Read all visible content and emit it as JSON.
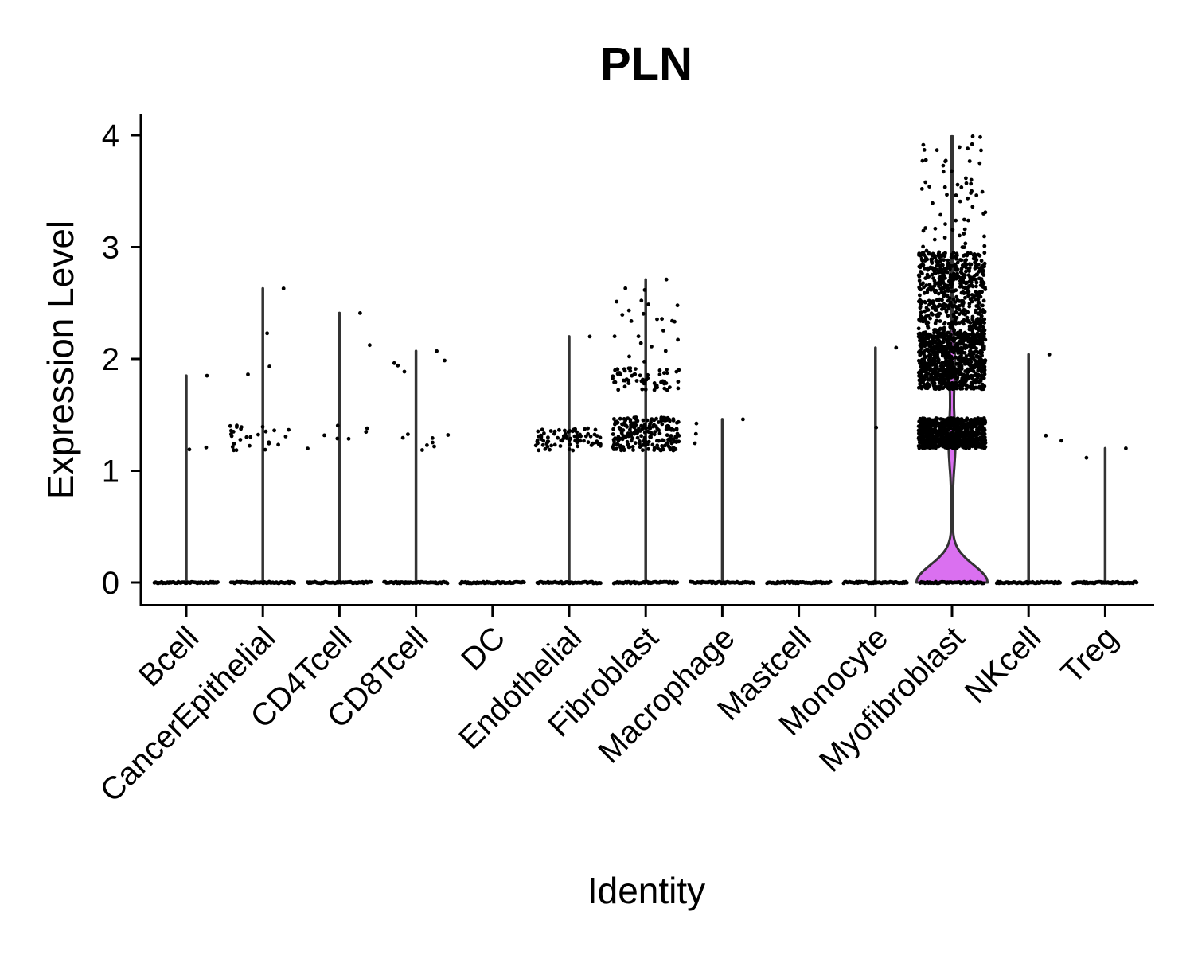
{
  "chart_data": {
    "type": "violin",
    "title": "PLN",
    "xlabel": "Identity",
    "ylabel": "Expression Level",
    "ylim": [
      -0.2,
      4.2
    ],
    "yticks": [
      "0",
      "1",
      "2",
      "3",
      "4"
    ],
    "grid": false,
    "legend": "none",
    "categories": [
      "Bcell",
      "CancerEpithelial",
      "CD4Tcell",
      "CD8Tcell",
      "DC",
      "Endothelial",
      "Fibroblast",
      "Macrophage",
      "Mastcell",
      "Monocyte",
      "Myofibroblast",
      "NKcell",
      "Treg"
    ],
    "max_values": [
      1.85,
      2.63,
      2.41,
      2.07,
      0,
      2.2,
      2.71,
      1.46,
      0,
      2.1,
      3.99,
      2.04,
      1.2
    ],
    "nonzero_point_counts": [
      2,
      30,
      8,
      12,
      0,
      80,
      300,
      3,
      0,
      1,
      2200,
      2,
      1
    ],
    "colors": {
      "violin_outline": "#333333",
      "myofibroblast_fill": "#DA70F0",
      "points": "#000000"
    }
  }
}
